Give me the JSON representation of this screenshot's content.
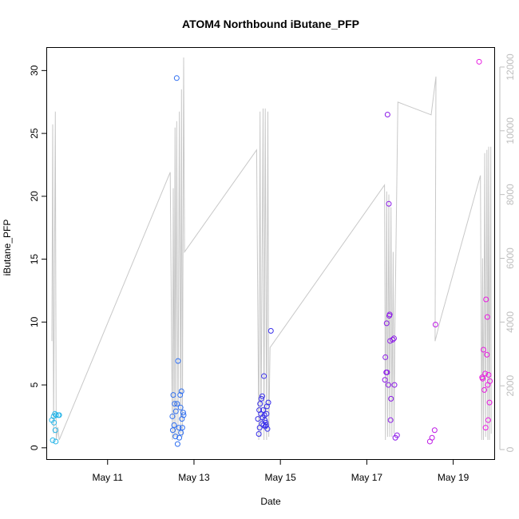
{
  "chart_data": {
    "type": "scatter",
    "title": "ATOM4 Northbound iButane_PFP",
    "xlabel": "Date",
    "ylabel": "iButane_PFP",
    "x_unit": "days",
    "xlim": [
      9.6,
      19.95
    ],
    "ylim": [
      -0.9,
      31.8
    ],
    "y2lim": [
      -300,
      12600
    ],
    "grid": false,
    "x_ticks": [
      {
        "value": 11,
        "label": "May 11"
      },
      {
        "value": 13,
        "label": "May 13"
      },
      {
        "value": 15,
        "label": "May 15"
      },
      {
        "value": 17,
        "label": "May 17"
      },
      {
        "value": 19,
        "label": "May 19"
      }
    ],
    "y_ticks": [
      {
        "value": 0,
        "label": "0"
      },
      {
        "value": 5,
        "label": "5"
      },
      {
        "value": 10,
        "label": "10"
      },
      {
        "value": 15,
        "label": "15"
      },
      {
        "value": 20,
        "label": "20"
      },
      {
        "value": 25,
        "label": "25"
      },
      {
        "value": 30,
        "label": "30"
      }
    ],
    "y2_ticks": [
      {
        "value": 0,
        "label": "0"
      },
      {
        "value": 2000,
        "label": "2000"
      },
      {
        "value": 4000,
        "label": "4000"
      },
      {
        "value": 6000,
        "label": "6000"
      },
      {
        "value": 8000,
        "label": "8000"
      },
      {
        "value": 10000,
        "label": "10000"
      },
      {
        "value": 12000,
        "label": "12000"
      }
    ],
    "colors": {
      "axis": "#000000",
      "secondary_axis": "#bebebe",
      "altitude_line": "#c8c8c8",
      "point_ramp": [
        "#29b6e8",
        "#2f6ff0",
        "#3b1fe8",
        "#a01ae8",
        "#e81ae0"
      ]
    },
    "points": [
      {
        "x": 9.71,
        "y": 2.2,
        "c": 0.0
      },
      {
        "x": 9.73,
        "y": 0.6,
        "c": 0.0
      },
      {
        "x": 9.75,
        "y": 2.5,
        "c": 0.0
      },
      {
        "x": 9.76,
        "y": 2.0,
        "c": 0.0
      },
      {
        "x": 9.78,
        "y": 2.7,
        "c": 0.0
      },
      {
        "x": 9.79,
        "y": 1.4,
        "c": 0.0
      },
      {
        "x": 9.8,
        "y": 0.5,
        "c": 0.0
      },
      {
        "x": 9.81,
        "y": 2.6,
        "c": 0.0
      },
      {
        "x": 9.86,
        "y": 2.6,
        "c": 0.0
      },
      {
        "x": 9.88,
        "y": 2.6,
        "c": 0.0
      },
      {
        "x": 12.5,
        "y": 2.5,
        "c": 0.25
      },
      {
        "x": 12.51,
        "y": 1.4,
        "c": 0.25
      },
      {
        "x": 12.52,
        "y": 4.2,
        "c": 0.25
      },
      {
        "x": 12.54,
        "y": 1.8,
        "c": 0.25
      },
      {
        "x": 12.55,
        "y": 3.5,
        "c": 0.25
      },
      {
        "x": 12.57,
        "y": 0.9,
        "c": 0.25
      },
      {
        "x": 12.58,
        "y": 2.9,
        "c": 0.25
      },
      {
        "x": 12.6,
        "y": 29.4,
        "c": 0.25
      },
      {
        "x": 12.61,
        "y": 3.5,
        "c": 0.25
      },
      {
        "x": 12.62,
        "y": 0.3,
        "c": 0.25
      },
      {
        "x": 12.63,
        "y": 6.9,
        "c": 0.25
      },
      {
        "x": 12.65,
        "y": 1.6,
        "c": 0.25
      },
      {
        "x": 12.66,
        "y": 0.8,
        "c": 0.25
      },
      {
        "x": 12.68,
        "y": 4.2,
        "c": 0.25
      },
      {
        "x": 12.69,
        "y": 3.2,
        "c": 0.25
      },
      {
        "x": 12.7,
        "y": 1.2,
        "c": 0.25
      },
      {
        "x": 12.71,
        "y": 4.5,
        "c": 0.25
      },
      {
        "x": 12.72,
        "y": 2.3,
        "c": 0.25
      },
      {
        "x": 12.73,
        "y": 1.6,
        "c": 0.25
      },
      {
        "x": 12.75,
        "y": 2.8,
        "c": 0.25
      },
      {
        "x": 12.76,
        "y": 2.6,
        "c": 0.25
      },
      {
        "x": 14.48,
        "y": 2.3,
        "c": 0.45
      },
      {
        "x": 14.5,
        "y": 1.1,
        "c": 0.45
      },
      {
        "x": 14.51,
        "y": 3.0,
        "c": 0.45
      },
      {
        "x": 14.52,
        "y": 1.6,
        "c": 0.45
      },
      {
        "x": 14.53,
        "y": 3.5,
        "c": 0.45
      },
      {
        "x": 14.55,
        "y": 2.7,
        "c": 0.45
      },
      {
        "x": 14.56,
        "y": 3.9,
        "c": 0.45
      },
      {
        "x": 14.57,
        "y": 1.9,
        "c": 0.45
      },
      {
        "x": 14.58,
        "y": 4.1,
        "c": 0.45
      },
      {
        "x": 14.59,
        "y": 2.4,
        "c": 0.45
      },
      {
        "x": 14.6,
        "y": 3.0,
        "c": 0.45
      },
      {
        "x": 14.61,
        "y": 1.8,
        "c": 0.45
      },
      {
        "x": 14.62,
        "y": 5.7,
        "c": 0.45
      },
      {
        "x": 14.63,
        "y": 2.6,
        "c": 0.45
      },
      {
        "x": 14.64,
        "y": 2.2,
        "c": 0.45
      },
      {
        "x": 14.65,
        "y": 1.7,
        "c": 0.45
      },
      {
        "x": 14.66,
        "y": 2.0,
        "c": 0.45
      },
      {
        "x": 14.67,
        "y": 1.8,
        "c": 0.45
      },
      {
        "x": 14.68,
        "y": 2.7,
        "c": 0.45
      },
      {
        "x": 14.69,
        "y": 3.3,
        "c": 0.45
      },
      {
        "x": 14.7,
        "y": 1.5,
        "c": 0.45
      },
      {
        "x": 14.72,
        "y": 3.6,
        "c": 0.45
      },
      {
        "x": 14.78,
        "y": 9.3,
        "c": 0.45
      },
      {
        "x": 17.42,
        "y": 5.4,
        "c": 0.7
      },
      {
        "x": 17.43,
        "y": 7.2,
        "c": 0.7
      },
      {
        "x": 17.45,
        "y": 6.0,
        "c": 0.7
      },
      {
        "x": 17.46,
        "y": 9.9,
        "c": 0.7
      },
      {
        "x": 17.47,
        "y": 6.0,
        "c": 0.7
      },
      {
        "x": 17.48,
        "y": 26.5,
        "c": 0.7
      },
      {
        "x": 17.5,
        "y": 5.0,
        "c": 0.7
      },
      {
        "x": 17.51,
        "y": 19.4,
        "c": 0.7
      },
      {
        "x": 17.52,
        "y": 10.5,
        "c": 0.7
      },
      {
        "x": 17.53,
        "y": 10.6,
        "c": 0.7
      },
      {
        "x": 17.54,
        "y": 8.5,
        "c": 0.7
      },
      {
        "x": 17.55,
        "y": 2.2,
        "c": 0.7
      },
      {
        "x": 17.56,
        "y": 3.9,
        "c": 0.7
      },
      {
        "x": 17.6,
        "y": 8.6,
        "c": 0.7
      },
      {
        "x": 17.63,
        "y": 8.7,
        "c": 0.7
      },
      {
        "x": 17.64,
        "y": 5.0,
        "c": 0.7
      },
      {
        "x": 17.66,
        "y": 0.8,
        "c": 0.7
      },
      {
        "x": 17.7,
        "y": 1.0,
        "c": 0.7
      },
      {
        "x": 18.46,
        "y": 0.5,
        "c": 0.85
      },
      {
        "x": 18.51,
        "y": 0.8,
        "c": 0.85
      },
      {
        "x": 18.57,
        "y": 1.4,
        "c": 0.85
      },
      {
        "x": 18.59,
        "y": 9.8,
        "c": 0.85
      },
      {
        "x": 19.6,
        "y": 30.7,
        "c": 1.0
      },
      {
        "x": 19.67,
        "y": 5.6,
        "c": 1.0
      },
      {
        "x": 19.68,
        "y": 5.5,
        "c": 1.0
      },
      {
        "x": 19.7,
        "y": 7.8,
        "c": 1.0
      },
      {
        "x": 19.72,
        "y": 4.6,
        "c": 1.0
      },
      {
        "x": 19.74,
        "y": 5.9,
        "c": 1.0
      },
      {
        "x": 19.75,
        "y": 1.6,
        "c": 1.0
      },
      {
        "x": 19.76,
        "y": 11.8,
        "c": 1.0
      },
      {
        "x": 19.78,
        "y": 7.4,
        "c": 1.0
      },
      {
        "x": 19.79,
        "y": 10.4,
        "c": 1.0
      },
      {
        "x": 19.8,
        "y": 5.0,
        "c": 1.0
      },
      {
        "x": 19.81,
        "y": 2.2,
        "c": 1.0
      },
      {
        "x": 19.82,
        "y": 5.8,
        "c": 1.0
      },
      {
        "x": 19.84,
        "y": 3.6,
        "c": 1.0
      },
      {
        "x": 19.85,
        "y": 5.3,
        "c": 1.0
      }
    ],
    "altitude": [
      [
        9.71,
        3400
      ],
      [
        9.73,
        10200
      ],
      [
        9.75,
        500
      ],
      [
        9.79,
        10600
      ],
      [
        9.81,
        300
      ],
      [
        9.85,
        700
      ],
      [
        9.88,
        300
      ],
      [
        12.45,
        8700
      ],
      [
        12.5,
        300
      ],
      [
        12.52,
        8200
      ],
      [
        12.54,
        400
      ],
      [
        12.56,
        10100
      ],
      [
        12.58,
        400
      ],
      [
        12.6,
        10300
      ],
      [
        12.63,
        400
      ],
      [
        12.66,
        10600
      ],
      [
        12.69,
        500
      ],
      [
        12.71,
        11300
      ],
      [
        12.73,
        400
      ],
      [
        12.76,
        12300
      ],
      [
        12.78,
        6200
      ],
      [
        14.45,
        9400
      ],
      [
        14.5,
        300
      ],
      [
        14.53,
        10600
      ],
      [
        14.55,
        400
      ],
      [
        14.6,
        10700
      ],
      [
        14.62,
        300
      ],
      [
        14.65,
        10700
      ],
      [
        14.68,
        300
      ],
      [
        14.71,
        10600
      ],
      [
        14.73,
        400
      ],
      [
        14.76,
        3200
      ],
      [
        17.41,
        8300
      ],
      [
        17.43,
        300
      ],
      [
        17.46,
        8100
      ],
      [
        17.48,
        400
      ],
      [
        17.51,
        8000
      ],
      [
        17.53,
        400
      ],
      [
        17.56,
        7600
      ],
      [
        17.58,
        400
      ],
      [
        17.61,
        6200
      ],
      [
        17.63,
        500
      ],
      [
        17.65,
        3800
      ],
      [
        17.72,
        10900
      ],
      [
        18.49,
        10500
      ],
      [
        18.6,
        11700
      ],
      [
        18.58,
        3400
      ],
      [
        18.71,
        4100
      ],
      [
        19.63,
        8600
      ],
      [
        19.66,
        300
      ],
      [
        19.68,
        6000
      ],
      [
        19.7,
        300
      ],
      [
        19.73,
        9300
      ],
      [
        19.75,
        400
      ],
      [
        19.78,
        9400
      ],
      [
        19.8,
        300
      ],
      [
        19.82,
        9500
      ],
      [
        19.84,
        300
      ],
      [
        19.87,
        9500
      ],
      [
        19.88,
        500
      ]
    ]
  }
}
